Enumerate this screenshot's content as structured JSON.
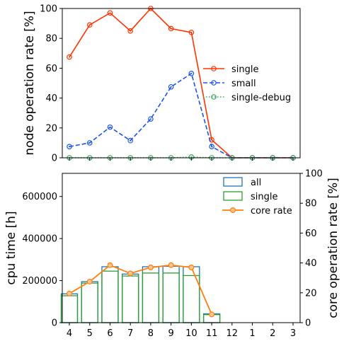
{
  "chart_data": [
    {
      "type": "line",
      "ylabel": "node operation rate [%]",
      "ylim": [
        0,
        100
      ],
      "yticks": [
        0,
        20,
        40,
        60,
        80,
        100
      ],
      "categories": [
        "4",
        "5",
        "6",
        "7",
        "8",
        "9",
        "10",
        "11",
        "12",
        "1",
        "2",
        "3"
      ],
      "legend_position": "center-right",
      "series": [
        {
          "name": "single",
          "color": "#ff3300",
          "linestyle": "solid",
          "values": [
            67.5,
            89,
            97,
            85,
            100,
            86.5,
            84,
            12,
            0,
            0,
            0,
            0
          ]
        },
        {
          "name": "small",
          "color": "#1a55e6",
          "linestyle": "dashed",
          "values": [
            7.5,
            10,
            20.5,
            11.5,
            26,
            47.5,
            56.5,
            7.5,
            0,
            0,
            0,
            0
          ]
        },
        {
          "name": "single-debug",
          "color": "#3aa860",
          "linestyle": "dotted",
          "values": [
            0,
            0,
            0,
            0,
            0,
            0,
            0.5,
            0,
            0,
            0,
            0,
            0
          ]
        }
      ]
    },
    {
      "type": "bar",
      "ylabel": "cpu time [h]",
      "ylim": [
        0,
        710000
      ],
      "yticks": [
        "0",
        "200000",
        "400000",
        "600000"
      ],
      "ytick_values": [
        0,
        200000,
        400000,
        600000
      ],
      "y2label": "core operation rate [%]",
      "y2lim": [
        0,
        100
      ],
      "y2ticks": [
        0,
        20,
        40,
        60,
        80,
        100
      ],
      "categories": [
        "4",
        "5",
        "6",
        "7",
        "8",
        "9",
        "10",
        "11",
        "12",
        "1",
        "2",
        "3"
      ],
      "legend_position": "top-right",
      "series": [
        {
          "name": "all",
          "kind": "bar",
          "color": "#1f77b4",
          "values": [
            137000,
            195000,
            266000,
            231000,
            266000,
            268000,
            266000,
            42000,
            0,
            0,
            0,
            0
          ]
        },
        {
          "name": "single",
          "kind": "bar",
          "color": "#2ca02c",
          "values": [
            128000,
            188000,
            245000,
            222000,
            236000,
            236000,
            224000,
            38000,
            0,
            0,
            0,
            0
          ]
        },
        {
          "name": "core rate",
          "kind": "line",
          "axis": "right",
          "color": "#ff7f0e",
          "values": [
            19.5,
            27.5,
            38.5,
            33,
            37,
            38.5,
            37,
            5.5,
            null,
            null,
            null,
            null
          ]
        }
      ]
    }
  ]
}
